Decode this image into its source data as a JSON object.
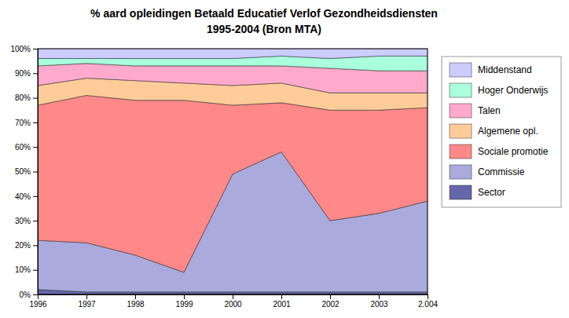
{
  "chart_data": {
    "type": "area",
    "stacked": true,
    "title": "% aard opleidingen Betaald Educatief Verlof Gezondheidsdiensten",
    "subtitle": "1995-2004 (Bron MTA)",
    "categories": [
      "1996",
      "1997",
      "1998",
      "1999",
      "2000",
      "2001",
      "2002",
      "2003",
      "2.004"
    ],
    "series": [
      {
        "name": "Sector",
        "color": "#6666aa",
        "values": [
          2,
          1,
          1,
          1,
          1,
          1,
          1,
          1,
          1
        ]
      },
      {
        "name": "Commissie",
        "color": "#aaaadd",
        "values": [
          20,
          20,
          15,
          8,
          48,
          57,
          29,
          32,
          37
        ]
      },
      {
        "name": "Sociale promotie",
        "color": "#ff8888",
        "values": [
          55,
          60,
          63,
          70,
          28,
          20,
          45,
          42,
          38
        ]
      },
      {
        "name": "Algemene opl.",
        "color": "#ffcc99",
        "values": [
          8,
          7,
          8,
          7,
          8,
          8,
          7,
          7,
          6
        ]
      },
      {
        "name": "Talen",
        "color": "#ffaacc",
        "values": [
          8,
          6,
          6,
          7,
          8,
          7,
          10,
          9,
          9
        ]
      },
      {
        "name": "Hoger Onderwijs",
        "color": "#aaffdd",
        "values": [
          3,
          2,
          3,
          3,
          3,
          4,
          4,
          6,
          6
        ]
      },
      {
        "name": "Middenstand",
        "color": "#ccccff",
        "values": [
          4,
          4,
          4,
          4,
          4,
          3,
          4,
          3,
          3
        ]
      }
    ],
    "ylim": [
      0,
      100
    ],
    "yticks": [
      {
        "value": 0,
        "label": "0%"
      },
      {
        "value": 10,
        "label": "10%"
      },
      {
        "value": 20,
        "label": "20%"
      },
      {
        "value": 30,
        "label": "30%"
      },
      {
        "value": 40,
        "label": "40%"
      },
      {
        "value": 50,
        "label": "50%"
      },
      {
        "value": 60,
        "label": "60%"
      },
      {
        "value": 70,
        "label": "70%"
      },
      {
        "value": 80,
        "label": "80%"
      },
      {
        "value": 90,
        "label": "90%"
      },
      {
        "value": 100,
        "label": "100%"
      }
    ],
    "grid": true,
    "legend": "right"
  }
}
